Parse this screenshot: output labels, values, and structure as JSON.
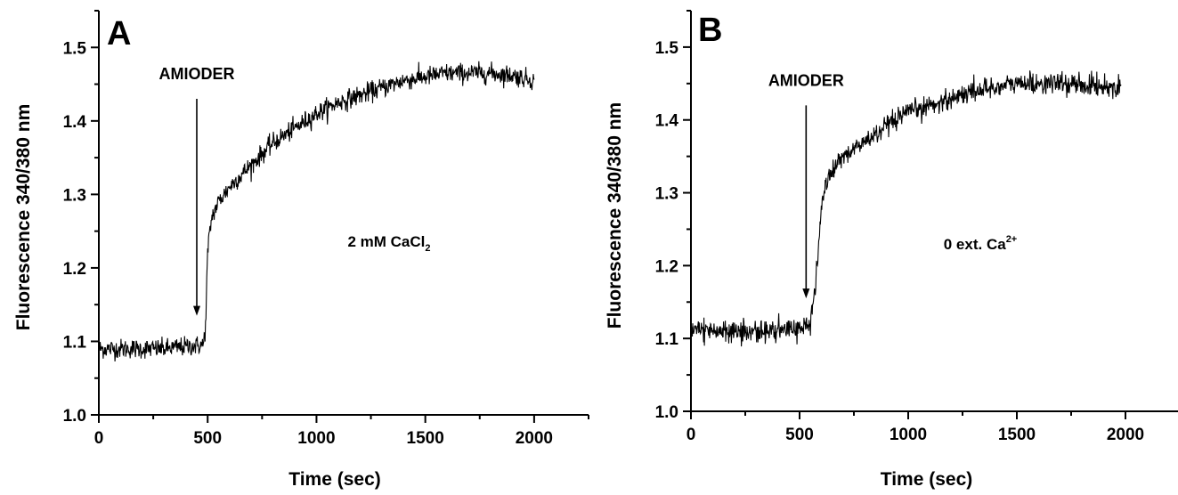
{
  "chart_data": [
    {
      "type": "line",
      "panel": "A",
      "xlabel": "Time (sec)",
      "ylabel": "Fluorescence 340/380 nm",
      "xlim": [
        0,
        2250
      ],
      "ylim": [
        1.0,
        1.55
      ],
      "xticks": [
        0,
        500,
        1000,
        1500,
        2000
      ],
      "yticks": [
        1.0,
        1.1,
        1.2,
        1.3,
        1.4,
        1.5
      ],
      "xtick_labels": [
        "0",
        "500",
        "1000",
        "1500",
        "2000"
      ],
      "ytick_labels": [
        "1.0",
        "1.1",
        "1.2",
        "1.3",
        "1.4",
        "1.5"
      ],
      "annotation": {
        "text": "AMIODER",
        "x": 450,
        "arrow_from_y": 1.43,
        "arrow_to_y": 1.135
      },
      "condition": {
        "main": "2 mM CaCl",
        "sub": "2",
        "sup": ""
      },
      "series": [
        {
          "x": [
            0,
            100,
            200,
            300,
            400,
            480,
            490,
            500,
            510,
            520,
            550,
            600,
            700,
            800,
            900,
            1000,
            1100,
            1200,
            1300,
            1400,
            1500,
            1600,
            1700,
            1800,
            1900,
            2000
          ],
          "values": [
            1.09,
            1.09,
            1.09,
            1.09,
            1.093,
            1.095,
            1.12,
            1.22,
            1.25,
            1.27,
            1.29,
            1.31,
            1.34,
            1.37,
            1.39,
            1.41,
            1.425,
            1.435,
            1.445,
            1.455,
            1.46,
            1.465,
            1.465,
            1.465,
            1.462,
            1.455
          ],
          "noise": 0.012
        }
      ]
    },
    {
      "type": "line",
      "panel": "B",
      "xlabel": "Time (sec)",
      "ylabel": "Fluorescence 340/380 nm",
      "xlim": [
        0,
        2250
      ],
      "ylim": [
        1.0,
        1.55
      ],
      "xticks": [
        0,
        500,
        1000,
        1500,
        2000
      ],
      "yticks": [
        1.0,
        1.1,
        1.2,
        1.3,
        1.4,
        1.5
      ],
      "xtick_labels": [
        "0",
        "500",
        "1000",
        "1500",
        "2000"
      ],
      "ytick_labels": [
        "1.0",
        "1.1",
        "1.2",
        "1.3",
        "1.4",
        "1.5"
      ],
      "annotation": {
        "text": "AMIODER",
        "x": 530,
        "arrow_from_y": 1.42,
        "arrow_to_y": 1.155
      },
      "condition": {
        "main": "0 ext. Ca",
        "sub": "",
        "sup": "2+"
      },
      "series": [
        {
          "x": [
            0,
            100,
            200,
            300,
            400,
            500,
            550,
            570,
            580,
            590,
            600,
            620,
            650,
            700,
            800,
            900,
            1000,
            1100,
            1200,
            1300,
            1400,
            1500,
            1600,
            1700,
            1800,
            1900,
            1980
          ],
          "values": [
            1.115,
            1.11,
            1.11,
            1.11,
            1.11,
            1.115,
            1.12,
            1.16,
            1.2,
            1.24,
            1.28,
            1.31,
            1.33,
            1.35,
            1.37,
            1.39,
            1.41,
            1.42,
            1.43,
            1.44,
            1.445,
            1.45,
            1.45,
            1.45,
            1.448,
            1.446,
            1.445
          ],
          "noise": 0.013
        }
      ]
    }
  ]
}
